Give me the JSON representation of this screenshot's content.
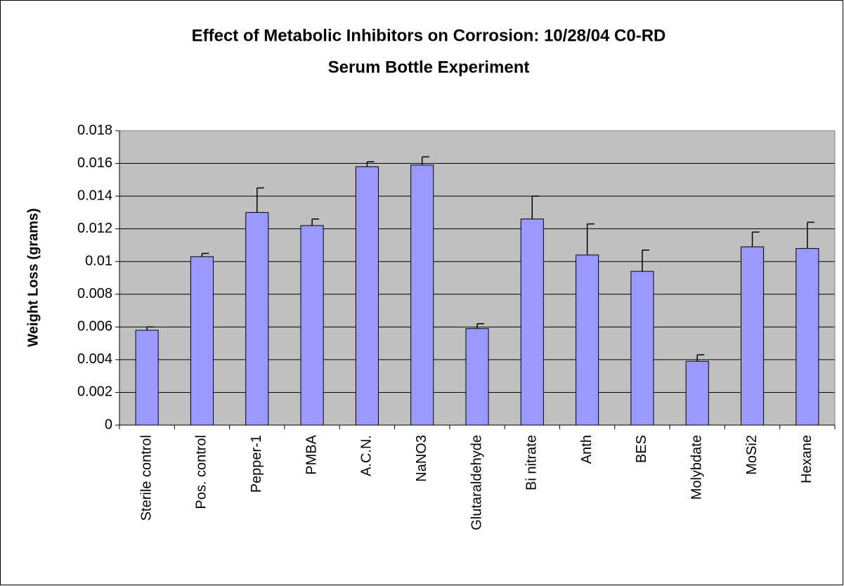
{
  "chart_data": {
    "type": "bar",
    "title": "Effect of Metabolic Inhibitors on Corrosion: 10/28/04 C0-RD",
    "subtitle": "Serum Bottle Experiment",
    "y_label": "Weight Loss (grams)",
    "categories": [
      "Sterile control",
      "Pos. control",
      "Pepper-1",
      "PMBA",
      "A.C.N.",
      "NaNO3",
      "Glutaraldehyde",
      "Bi nitrate",
      "Anth",
      "BES",
      "Molybdate",
      "MoSi2",
      "Hexane"
    ],
    "values": [
      0.0058,
      0.0103,
      0.013,
      0.0122,
      0.0158,
      0.0159,
      0.0059,
      0.0126,
      0.0104,
      0.0094,
      0.0039,
      0.0109,
      0.0108
    ],
    "errors": [
      0.0002,
      0.0002,
      0.0015,
      0.0004,
      0.0003,
      0.0005,
      0.0003,
      0.0014,
      0.0019,
      0.0013,
      0.0004,
      0.0009,
      0.0016
    ],
    "color": "#9999ff",
    "ylim": [
      0,
      0.018
    ],
    "yticks": [
      0,
      0.002,
      0.004,
      0.006,
      0.008,
      0.01,
      0.012,
      0.014,
      0.016,
      0.018
    ],
    "grid": true
  }
}
